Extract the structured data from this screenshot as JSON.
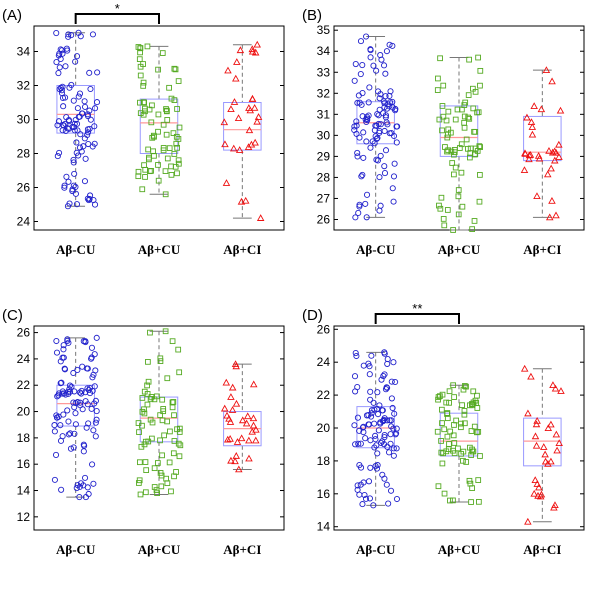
{
  "figure": {
    "panel_labels": [
      "(A)",
      "(B)",
      "(C)",
      "(D)"
    ],
    "colors": {
      "Aβ-CU": "#2222cc",
      "Aβ+CU": "#55aa22",
      "Aβ+CI": "#ee1111",
      "box": "#9999ff",
      "median": "#ff9999",
      "whisker": "#777777"
    }
  },
  "chart_data": [
    {
      "type": "boxplot",
      "panel": "(A)",
      "categories": [
        "Aβ-CU",
        "Aβ+CU",
        "Aβ+CI"
      ],
      "ylim": [
        23.5,
        35.5
      ],
      "yticks": [
        24,
        26,
        28,
        30,
        32,
        34
      ],
      "boxes": [
        {
          "min": 24.9,
          "q1": 29.2,
          "median": 30.3,
          "q3": 32.0,
          "max": 35.1
        },
        {
          "min": 25.6,
          "q1": 28.0,
          "median": 29.8,
          "q3": 31.2,
          "max": 34.3
        },
        {
          "min": 24.2,
          "q1": 28.2,
          "median": 29.4,
          "q3": 31.0,
          "max": 34.4
        }
      ],
      "significance": [
        {
          "from": 0,
          "to": 1,
          "label": "*"
        }
      ]
    },
    {
      "type": "boxplot",
      "panel": "(B)",
      "categories": [
        "Aβ-CU",
        "Aβ+CU",
        "Aβ+CI"
      ],
      "ylim": [
        25.5,
        35.2
      ],
      "yticks": [
        26,
        27,
        28,
        29,
        30,
        31,
        32,
        33,
        34,
        35
      ],
      "boxes": [
        {
          "min": 26.1,
          "q1": 29.6,
          "median": 30.6,
          "q3": 31.6,
          "max": 34.7
        },
        {
          "min": 25.5,
          "q1": 29.0,
          "median": 29.9,
          "q3": 31.4,
          "max": 33.7
        },
        {
          "min": 26.1,
          "q1": 28.8,
          "median": 29.2,
          "q3": 30.9,
          "max": 33.1
        }
      ],
      "significance": []
    },
    {
      "type": "boxplot",
      "panel": "(C)",
      "categories": [
        "Aβ-CU",
        "Aβ+CU",
        "Aβ+CI"
      ],
      "ylim": [
        11,
        26.5
      ],
      "yticks": [
        12,
        14,
        16,
        18,
        20,
        22,
        24,
        26
      ],
      "boxes": [
        {
          "min": 13.5,
          "q1": 18.9,
          "median": 20.6,
          "q3": 22.0,
          "max": 25.6
        },
        {
          "min": 13.7,
          "q1": 17.7,
          "median": 19.5,
          "q3": 21.1,
          "max": 26.1
        },
        {
          "min": 15.6,
          "q1": 17.4,
          "median": 18.7,
          "q3": 20.0,
          "max": 23.6
        }
      ],
      "significance": []
    },
    {
      "type": "boxplot",
      "panel": "(D)",
      "categories": [
        "Aβ-CU",
        "Aβ+CU",
        "Aβ+CI"
      ],
      "ylim": [
        13.8,
        26.2
      ],
      "yticks": [
        14,
        16,
        18,
        20,
        22,
        24,
        26
      ],
      "boxes": [
        {
          "min": 15.3,
          "q1": 18.8,
          "median": 20.0,
          "q3": 21.3,
          "max": 24.6
        },
        {
          "min": 15.5,
          "q1": 18.3,
          "median": 19.2,
          "q3": 20.9,
          "max": 22.6
        },
        {
          "min": 14.3,
          "q1": 17.7,
          "median": 19.2,
          "q3": 20.6,
          "max": 23.6
        }
      ],
      "significance": [
        {
          "from": 0,
          "to": 1,
          "label": "**"
        }
      ]
    }
  ]
}
